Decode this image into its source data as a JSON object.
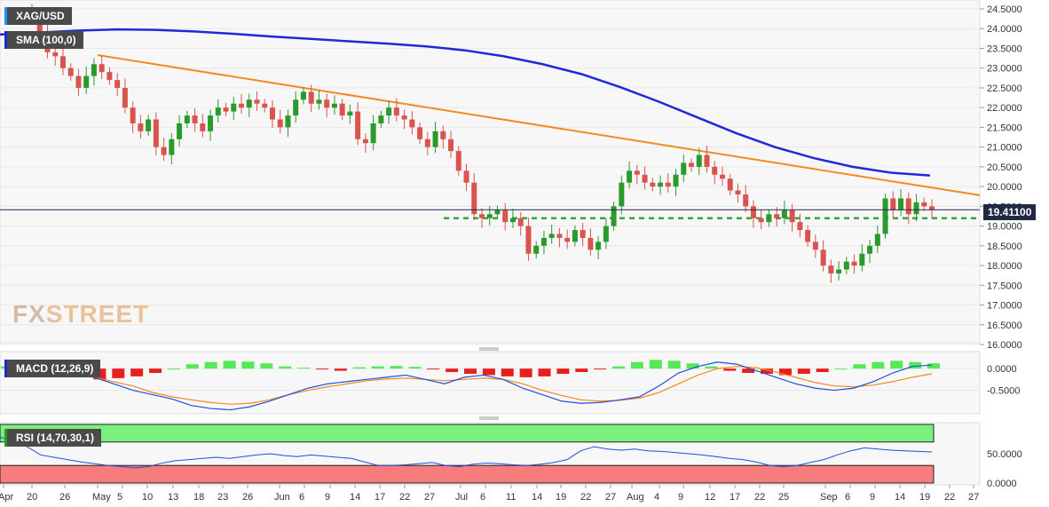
{
  "symbol": "XAG/USD",
  "indicators": {
    "sma_label": "SMA (100,0)",
    "macd_label": "MACD (12,26,9)",
    "rsi_label": "RSI (14,70,30,1)"
  },
  "watermark": {
    "fx": "FX",
    "street": "STREET"
  },
  "last_price_label": "19.41100",
  "colors": {
    "up": "#2a9a2a",
    "down": "#d9534f",
    "sma": "#1e2bd4",
    "trendline": "#f5891e",
    "support": "#3aa53a",
    "macd_line": "#1e50d8",
    "signal_line": "#f5891e",
    "hist_pos": "#57e857",
    "hist_neg": "#e81f1f",
    "rsi_line": "#1e50d8",
    "rsi_overbought": "#7cf07c",
    "rsi_oversold": "#f77c7c"
  },
  "chart_data": [
    {
      "type": "candlestick",
      "title": "XAG/USD",
      "yticks": [
        "24.5000",
        "24.0000",
        "23.5000",
        "23.0000",
        "22.5000",
        "22.0000",
        "21.5000",
        "21.0000",
        "20.5000",
        "20.0000",
        "19.5000",
        "19.0000",
        "18.5000",
        "18.0000",
        "17.5000",
        "17.0000",
        "16.5000",
        "16.0000"
      ],
      "ylim": [
        16.0,
        24.6
      ],
      "xticks": [
        "Apr",
        "20",
        "26",
        "May",
        "5",
        "10",
        "13",
        "18",
        "23",
        "26",
        "Jun",
        "6",
        "9",
        "14",
        "17",
        "22",
        "27",
        "Jul",
        "6",
        "11",
        "14",
        "19",
        "22",
        "27",
        "Aug",
        "4",
        "9",
        "12",
        "17",
        "22",
        "25",
        "Sep",
        "6",
        "9",
        "14",
        "19",
        "22",
        "27"
      ],
      "last_price": 19.411,
      "support_level": 19.2,
      "trendline": {
        "start_value": 23.33,
        "end_value": 19.78
      },
      "sma_100": [
        23.85,
        23.9,
        23.95,
        23.98,
        23.97,
        23.93,
        23.87,
        23.8,
        23.74,
        23.68,
        23.62,
        23.55,
        23.45,
        23.3,
        23.1,
        22.85,
        22.52,
        22.15,
        21.75,
        21.35,
        21.0,
        20.72,
        20.5,
        20.35,
        20.28
      ],
      "candles": [
        [
          24.5,
          24.2
        ],
        [
          24.2,
          23.9
        ],
        [
          23.9,
          23.4
        ],
        [
          23.4,
          23.3
        ],
        [
          23.3,
          23.0
        ],
        [
          23.0,
          22.8
        ],
        [
          22.8,
          22.5
        ],
        [
          22.5,
          22.8
        ],
        [
          22.8,
          23.1
        ],
        [
          23.1,
          22.9
        ],
        [
          22.9,
          22.7
        ],
        [
          22.7,
          22.5
        ],
        [
          22.5,
          22.0
        ],
        [
          22.0,
          21.6
        ],
        [
          21.6,
          21.4
        ],
        [
          21.4,
          21.7
        ],
        [
          21.7,
          21.0
        ],
        [
          21.0,
          20.8
        ],
        [
          20.8,
          21.2
        ],
        [
          21.2,
          21.6
        ],
        [
          21.6,
          21.8
        ],
        [
          21.8,
          21.6
        ],
        [
          21.6,
          21.4
        ],
        [
          21.4,
          21.8
        ],
        [
          21.8,
          22.0
        ],
        [
          22.0,
          21.9
        ],
        [
          21.9,
          22.1
        ],
        [
          22.1,
          22.0
        ],
        [
          22.0,
          22.2
        ],
        [
          22.2,
          22.1
        ],
        [
          22.1,
          22.0
        ],
        [
          22.0,
          21.7
        ],
        [
          21.7,
          21.5
        ],
        [
          21.5,
          21.8
        ],
        [
          21.8,
          22.2
        ],
        [
          22.2,
          22.4
        ],
        [
          22.4,
          22.1
        ],
        [
          22.1,
          22.2
        ],
        [
          22.2,
          22.0
        ],
        [
          22.0,
          22.1
        ],
        [
          22.1,
          21.8
        ],
        [
          21.8,
          21.9
        ],
        [
          21.9,
          21.2
        ],
        [
          21.2,
          21.1
        ],
        [
          21.1,
          21.6
        ],
        [
          21.6,
          21.8
        ],
        [
          21.8,
          22.0
        ],
        [
          22.0,
          21.8
        ],
        [
          21.8,
          21.7
        ],
        [
          21.7,
          21.5
        ],
        [
          21.5,
          21.2
        ],
        [
          21.2,
          21.0
        ],
        [
          21.0,
          21.4
        ],
        [
          21.4,
          21.2
        ],
        [
          21.2,
          20.9
        ],
        [
          20.9,
          20.4
        ],
        [
          20.4,
          20.1
        ],
        [
          20.1,
          19.3
        ],
        [
          19.3,
          19.2
        ],
        [
          19.2,
          19.3
        ],
        [
          19.3,
          19.4
        ],
        [
          19.4,
          19.1
        ],
        [
          19.1,
          19.2
        ],
        [
          19.2,
          19.0
        ],
        [
          19.0,
          18.3
        ],
        [
          18.3,
          18.5
        ],
        [
          18.5,
          18.7
        ],
        [
          18.7,
          18.8
        ],
        [
          18.8,
          18.7
        ],
        [
          18.7,
          18.6
        ],
        [
          18.6,
          18.9
        ],
        [
          18.9,
          18.7
        ],
        [
          18.7,
          18.4
        ],
        [
          18.4,
          18.6
        ],
        [
          18.6,
          19.0
        ],
        [
          19.0,
          19.5
        ],
        [
          19.5,
          20.1
        ],
        [
          20.1,
          20.4
        ],
        [
          20.4,
          20.3
        ],
        [
          20.3,
          20.1
        ],
        [
          20.1,
          20.0
        ],
        [
          20.0,
          20.1
        ],
        [
          20.1,
          20.0
        ],
        [
          20.0,
          20.3
        ],
        [
          20.3,
          20.6
        ],
        [
          20.6,
          20.5
        ],
        [
          20.5,
          20.8
        ],
        [
          20.8,
          20.5
        ],
        [
          20.5,
          20.3
        ],
        [
          20.3,
          20.2
        ],
        [
          20.2,
          19.9
        ],
        [
          19.9,
          19.8
        ],
        [
          19.8,
          19.5
        ],
        [
          19.5,
          19.2
        ],
        [
          19.2,
          19.1
        ],
        [
          19.1,
          19.3
        ],
        [
          19.3,
          19.2
        ],
        [
          19.2,
          19.4
        ],
        [
          19.4,
          19.1
        ],
        [
          19.1,
          18.9
        ],
        [
          18.9,
          18.6
        ],
        [
          18.6,
          18.4
        ],
        [
          18.4,
          18.0
        ],
        [
          18.0,
          17.8
        ],
        [
          17.8,
          17.9
        ],
        [
          17.9,
          18.1
        ],
        [
          18.1,
          18.0
        ],
        [
          18.0,
          18.3
        ],
        [
          18.3,
          18.5
        ],
        [
          18.5,
          18.8
        ],
        [
          18.8,
          19.7
        ],
        [
          19.7,
          19.4
        ],
        [
          19.4,
          19.7
        ],
        [
          19.7,
          19.3
        ],
        [
          19.3,
          19.6
        ],
        [
          19.6,
          19.5
        ],
        [
          19.5,
          19.41
        ]
      ]
    },
    {
      "type": "macd",
      "title": "MACD (12,26,9)",
      "yticks": [
        "0.0000",
        "-0.5000"
      ],
      "ylim": [
        -1.0,
        0.35
      ],
      "macd_line": [
        -0.0,
        -0.05,
        -0.1,
        -0.2,
        -0.35,
        -0.5,
        -0.6,
        -0.7,
        -0.85,
        -0.92,
        -0.95,
        -0.88,
        -0.75,
        -0.6,
        -0.45,
        -0.35,
        -0.3,
        -0.25,
        -0.2,
        -0.15,
        -0.25,
        -0.35,
        -0.2,
        -0.15,
        -0.25,
        -0.45,
        -0.6,
        -0.75,
        -0.8,
        -0.78,
        -0.72,
        -0.65,
        -0.4,
        -0.1,
        0.05,
        0.15,
        0.1,
        -0.05,
        -0.2,
        -0.35,
        -0.45,
        -0.5,
        -0.45,
        -0.3,
        -0.1,
        0.05,
        0.08
      ],
      "signal_line": [
        -0.05,
        -0.1,
        -0.15,
        -0.2,
        -0.3,
        -0.4,
        -0.55,
        -0.65,
        -0.72,
        -0.78,
        -0.82,
        -0.8,
        -0.72,
        -0.6,
        -0.5,
        -0.42,
        -0.35,
        -0.28,
        -0.24,
        -0.22,
        -0.25,
        -0.28,
        -0.25,
        -0.22,
        -0.25,
        -0.35,
        -0.5,
        -0.62,
        -0.72,
        -0.75,
        -0.73,
        -0.68,
        -0.55,
        -0.35,
        -0.15,
        0.0,
        0.05,
        0.02,
        -0.08,
        -0.2,
        -0.32,
        -0.4,
        -0.42,
        -0.38,
        -0.3,
        -0.2,
        -0.12
      ],
      "histogram": [
        0.05,
        0.03,
        -0.05,
        -0.15,
        -0.2,
        -0.25,
        -0.22,
        -0.18,
        -0.1,
        0.0,
        0.1,
        0.15,
        0.18,
        0.16,
        0.12,
        0.05,
        0.02,
        -0.02,
        -0.05,
        0.03,
        0.05,
        0.06,
        0.04,
        -0.02,
        -0.08,
        -0.12,
        -0.15,
        -0.18,
        -0.2,
        -0.18,
        -0.12,
        -0.08,
        -0.02,
        0.05,
        0.15,
        0.2,
        0.18,
        0.12,
        0.05,
        -0.05,
        -0.1,
        -0.12,
        -0.15,
        -0.12,
        -0.08,
        0.0,
        0.1,
        0.15,
        0.18,
        0.15,
        0.12
      ]
    },
    {
      "type": "rsi",
      "title": "RSI (14,70,30,1)",
      "yticks": [
        "50.0000",
        "0.0000"
      ],
      "ylim": [
        0,
        100
      ],
      "overbought": 70,
      "oversold": 30,
      "values": [
        78,
        72,
        62,
        48,
        44,
        40,
        36,
        33,
        30,
        28,
        26,
        28,
        34,
        38,
        40,
        42,
        44,
        42,
        45,
        48,
        50,
        47,
        45,
        48,
        46,
        44,
        42,
        36,
        30,
        30,
        31,
        33,
        35,
        30,
        28,
        32,
        34,
        33,
        31,
        30,
        32,
        35,
        40,
        55,
        62,
        58,
        56,
        58,
        55,
        54,
        52,
        50,
        48,
        45,
        42,
        40,
        36,
        30,
        28,
        30,
        35,
        40,
        48,
        55,
        60,
        58,
        56,
        55,
        54,
        53
      ]
    },
    {
      "type": "xaxis",
      "labels": [
        "Apr",
        "20",
        "26",
        "May",
        "5",
        "10",
        "13",
        "18",
        "23",
        "26",
        "Jun",
        "6",
        "9",
        "14",
        "17",
        "22",
        "27",
        "Jul",
        "6",
        "11",
        "14",
        "19",
        "22",
        "27",
        "Aug",
        "4",
        "9",
        "12",
        "17",
        "22",
        "25",
        "Sep",
        "6",
        "9",
        "14",
        "19",
        "22",
        "27"
      ]
    }
  ]
}
